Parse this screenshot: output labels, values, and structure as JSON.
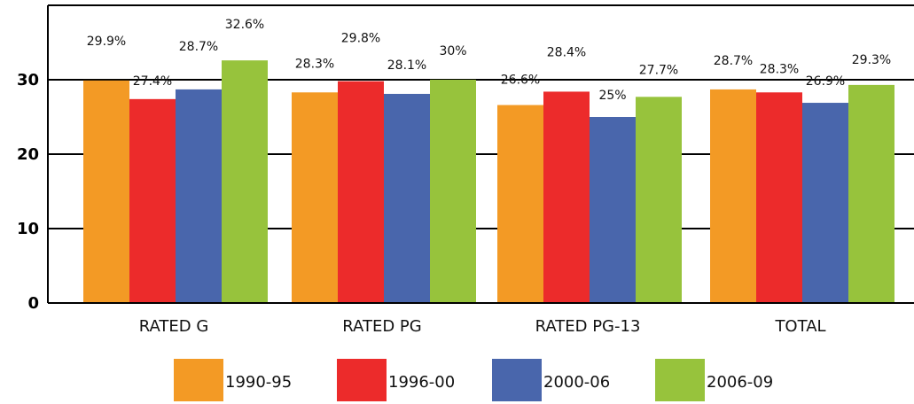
{
  "chart_data": {
    "type": "bar",
    "title": "",
    "xlabel": "",
    "ylabel": "",
    "ylim": [
      0,
      40
    ],
    "yticks": [
      0,
      10,
      20,
      30
    ],
    "grid": "horizontal",
    "legend_position": "bottom",
    "categories": [
      "RATED G",
      "RATED PG",
      "RATED PG-13",
      "TOTAL"
    ],
    "series": [
      {
        "name": "1990-95",
        "color": "#f39a25",
        "values": [
          29.9,
          28.3,
          26.6,
          28.7
        ],
        "labels": [
          "29.9%",
          "28.3%",
          "26.6%",
          "28.7%"
        ]
      },
      {
        "name": "1996-00",
        "color": "#ec2b2b",
        "values": [
          27.4,
          29.8,
          28.4,
          28.3
        ],
        "labels": [
          "27.4%",
          "29.8%",
          "28.4%",
          "28.3%"
        ]
      },
      {
        "name": "2000-06",
        "color": "#4966ac",
        "values": [
          28.7,
          28.1,
          25,
          26.9
        ],
        "labels": [
          "28.7%",
          "28.1%",
          "25%",
          "26.9%"
        ]
      },
      {
        "name": "2006-09",
        "color": "#97c33c",
        "values": [
          32.6,
          30,
          27.7,
          29.3
        ],
        "labels": [
          "32.6%",
          "30%",
          "27.7%",
          "29.3%"
        ]
      }
    ]
  }
}
